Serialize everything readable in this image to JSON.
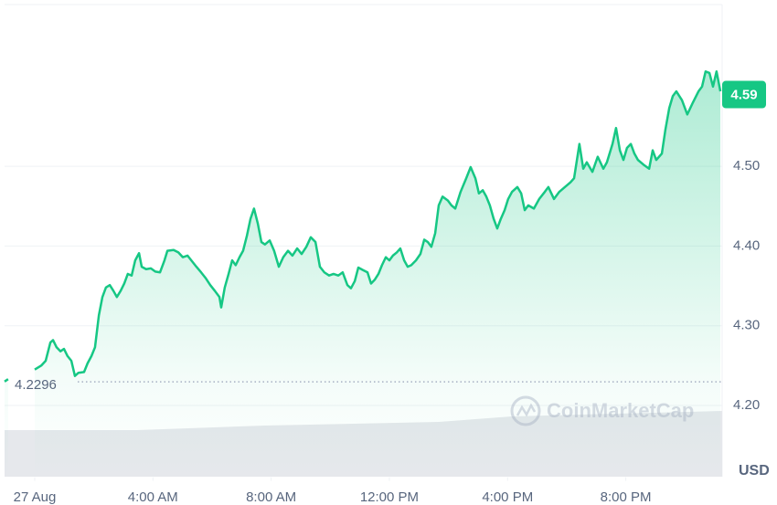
{
  "chart_data": {
    "type": "line",
    "color": "#16c784",
    "grid": true,
    "currency": "USD",
    "watermark": "CoinMarketCap",
    "open_price": 4.2296,
    "last_price": 4.59,
    "xlim": [
      -1.02,
      23.26
    ],
    "ylim": [
      4.11,
      4.7
    ],
    "xticks": [
      {
        "value": 0,
        "label": "27 Aug"
      },
      {
        "value": 4,
        "label": "4:00 AM"
      },
      {
        "value": 8,
        "label": "8:00 AM"
      },
      {
        "value": 12,
        "label": "12:00 PM"
      },
      {
        "value": 16,
        "label": "4:00 PM"
      },
      {
        "value": 20,
        "label": "8:00 PM"
      }
    ],
    "yticks": [
      {
        "value": 4.2,
        "label": "4.20"
      },
      {
        "value": 4.3,
        "label": "4.30"
      },
      {
        "value": 4.4,
        "label": "4.40"
      },
      {
        "value": 4.5,
        "label": "4.50"
      }
    ],
    "x": [
      -1.02,
      -0.9,
      -0.45,
      0.0,
      0.22,
      0.37,
      0.53,
      0.62,
      0.74,
      0.87,
      0.99,
      1.11,
      1.24,
      1.36,
      1.48,
      1.67,
      1.79,
      1.92,
      2.04,
      2.17,
      2.29,
      2.41,
      2.54,
      2.66,
      2.78,
      2.91,
      3.03,
      3.15,
      3.28,
      3.4,
      3.53,
      3.62,
      3.77,
      3.93,
      4.08,
      4.24,
      4.39,
      4.49,
      4.7,
      4.86,
      5.01,
      5.17,
      5.32,
      5.47,
      5.63,
      5.78,
      5.94,
      6.09,
      6.25,
      6.31,
      6.43,
      6.56,
      6.68,
      6.8,
      6.93,
      7.05,
      7.18,
      7.3,
      7.42,
      7.55,
      7.67,
      7.79,
      7.95,
      8.1,
      8.26,
      8.41,
      8.57,
      8.72,
      8.88,
      9.03,
      9.19,
      9.34,
      9.5,
      9.65,
      9.8,
      9.96,
      10.11,
      10.27,
      10.42,
      10.58,
      10.7,
      10.83,
      10.95,
      11.1,
      11.26,
      11.38,
      11.51,
      11.63,
      11.75,
      11.88,
      12.0,
      12.12,
      12.25,
      12.37,
      12.5,
      12.62,
      12.74,
      12.9,
      13.05,
      13.18,
      13.3,
      13.42,
      13.55,
      13.67,
      13.8,
      13.98,
      14.1,
      14.23,
      14.41,
      14.6,
      14.75,
      14.91,
      15.03,
      15.16,
      15.28,
      15.4,
      15.53,
      15.65,
      15.77,
      15.9,
      16.02,
      16.15,
      16.33,
      16.46,
      16.58,
      16.7,
      16.89,
      17.07,
      17.26,
      17.38,
      17.57,
      17.75,
      17.94,
      18.13,
      18.25,
      18.43,
      18.56,
      18.68,
      18.87,
      19.05,
      19.24,
      19.36,
      19.55,
      19.67,
      19.8,
      19.92,
      20.04,
      20.17,
      20.29,
      20.41,
      20.6,
      20.79,
      20.91,
      21.03,
      21.22,
      21.34,
      21.47,
      21.59,
      21.71,
      21.9,
      22.08,
      22.27,
      22.46,
      22.58,
      22.7,
      22.83,
      22.95,
      23.07,
      23.2
    ],
    "values": [
      4.23,
      4.233,
      null,
      4.245,
      4.25,
      4.256,
      4.279,
      4.282,
      4.273,
      4.268,
      4.271,
      4.262,
      4.256,
      4.237,
      4.241,
      4.242,
      4.253,
      4.262,
      4.273,
      4.313,
      4.336,
      4.348,
      4.351,
      4.344,
      4.336,
      4.344,
      4.353,
      4.365,
      4.363,
      4.382,
      4.391,
      4.374,
      4.371,
      4.372,
      4.368,
      4.367,
      4.382,
      4.394,
      4.395,
      4.392,
      4.386,
      4.388,
      4.381,
      4.374,
      4.367,
      4.36,
      4.351,
      4.344,
      4.336,
      4.323,
      4.348,
      4.365,
      4.382,
      4.376,
      4.386,
      4.394,
      4.413,
      4.434,
      4.447,
      4.428,
      4.405,
      4.402,
      4.407,
      4.394,
      4.374,
      4.386,
      4.394,
      4.388,
      4.397,
      4.39,
      4.399,
      4.411,
      4.405,
      4.374,
      4.367,
      4.363,
      4.365,
      4.363,
      4.367,
      4.351,
      4.347,
      4.356,
      4.373,
      4.37,
      4.367,
      4.353,
      4.358,
      4.365,
      4.376,
      4.386,
      4.382,
      4.388,
      4.392,
      4.397,
      4.382,
      4.374,
      4.376,
      4.382,
      4.39,
      4.408,
      4.405,
      4.399,
      4.416,
      4.451,
      4.462,
      4.457,
      4.451,
      4.447,
      4.468,
      4.485,
      4.499,
      4.485,
      4.466,
      4.47,
      4.462,
      4.451,
      4.434,
      4.422,
      4.434,
      4.445,
      4.459,
      4.468,
      4.474,
      4.466,
      4.445,
      4.451,
      4.447,
      4.459,
      4.468,
      4.474,
      4.459,
      4.468,
      4.474,
      4.48,
      4.485,
      4.528,
      4.497,
      4.505,
      4.493,
      4.512,
      4.497,
      4.505,
      4.528,
      4.548,
      4.52,
      4.508,
      4.523,
      4.528,
      4.516,
      4.508,
      4.502,
      4.497,
      4.52,
      4.508,
      4.516,
      4.546,
      4.573,
      4.588,
      4.594,
      4.583,
      4.565,
      4.58,
      4.594,
      4.6,
      4.619,
      4.617,
      4.6,
      4.619,
      4.594
    ]
  }
}
